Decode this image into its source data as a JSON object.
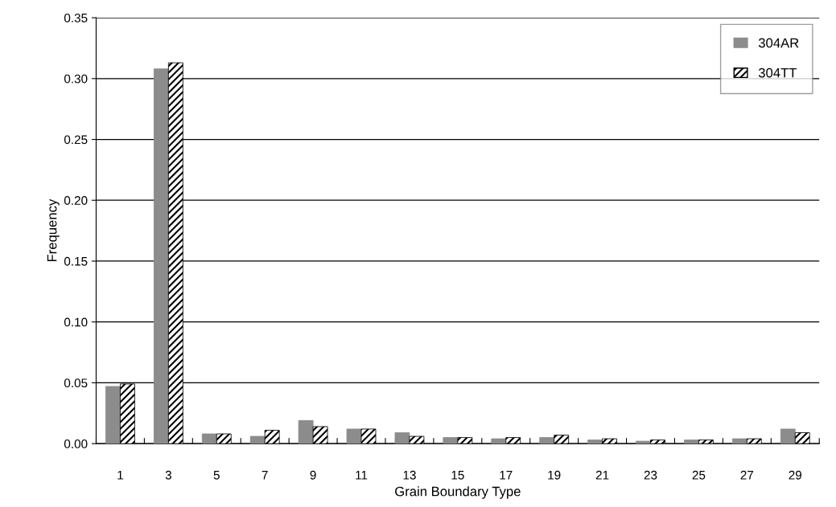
{
  "chart_data": {
    "type": "bar",
    "xlabel": "Grain Boundary Type",
    "ylabel": "Frequency",
    "categories": [
      "1",
      "3",
      "5",
      "7",
      "9",
      "11",
      "13",
      "15",
      "17",
      "19",
      "21",
      "23",
      "25",
      "27",
      "29"
    ],
    "series": [
      {
        "name": "304AR",
        "color": "#8c8c8c",
        "values": [
          0.047,
          0.308,
          0.008,
          0.006,
          0.019,
          0.012,
          0.009,
          0.005,
          0.004,
          0.005,
          0.003,
          0.002,
          0.003,
          0.004,
          0.012
        ]
      },
      {
        "name": "304TT",
        "color": "#000000",
        "values": [
          0.049,
          0.313,
          0.008,
          0.011,
          0.014,
          0.012,
          0.006,
          0.005,
          0.005,
          0.007,
          0.004,
          0.003,
          0.003,
          0.004,
          0.009
        ]
      }
    ],
    "ylim": [
      0,
      0.35
    ],
    "yticks": [
      {
        "value": 0,
        "label": "0.00"
      },
      {
        "value": 0.05,
        "label": "0.05"
      },
      {
        "value": 0.1,
        "label": "0.10"
      },
      {
        "value": 0.15,
        "label": "0.15"
      },
      {
        "value": 0.2,
        "label": "0.20"
      },
      {
        "value": 0.25,
        "label": "0.25"
      },
      {
        "value": 0.3,
        "label": "0.30"
      },
      {
        "value": 0.35,
        "label": "0.35"
      }
    ],
    "grid": "y",
    "legend": "top right"
  }
}
